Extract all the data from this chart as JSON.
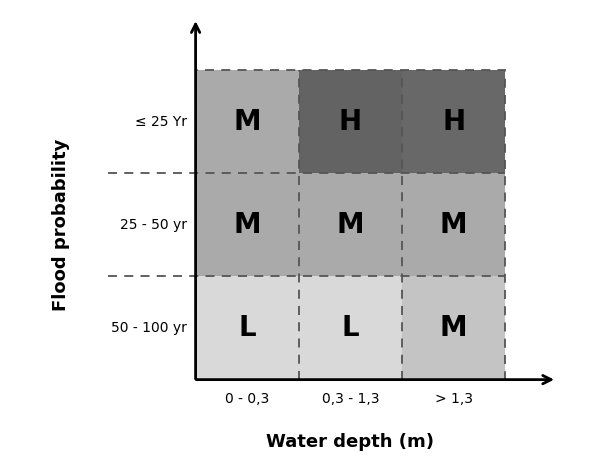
{
  "title_x": "Water depth (m)",
  "title_y": "Flood probability",
  "col_labels": [
    "0 - 0,3",
    "0,3 - 1,3",
    "> 1,3"
  ],
  "row_labels": [
    "≤ 25 Yr",
    "25 - 50 yr",
    "50 - 100 yr"
  ],
  "grid_labels": [
    [
      "M",
      "H",
      "H"
    ],
    [
      "M",
      "M",
      "M"
    ],
    [
      "L",
      "L",
      "M"
    ]
  ],
  "cell_colors": [
    [
      "#aaaaaa",
      "#636363",
      "#686868"
    ],
    [
      "#aaaaaa",
      "#aaaaaa",
      "#aaaaaa"
    ],
    [
      "#d9d9d9",
      "#d9d9d9",
      "#c4c4c4"
    ]
  ],
  "label_fontsize": 20,
  "tick_fontsize": 10,
  "axis_label_fontsize": 13,
  "grid_line_color": "#555555",
  "background": "#ffffff"
}
